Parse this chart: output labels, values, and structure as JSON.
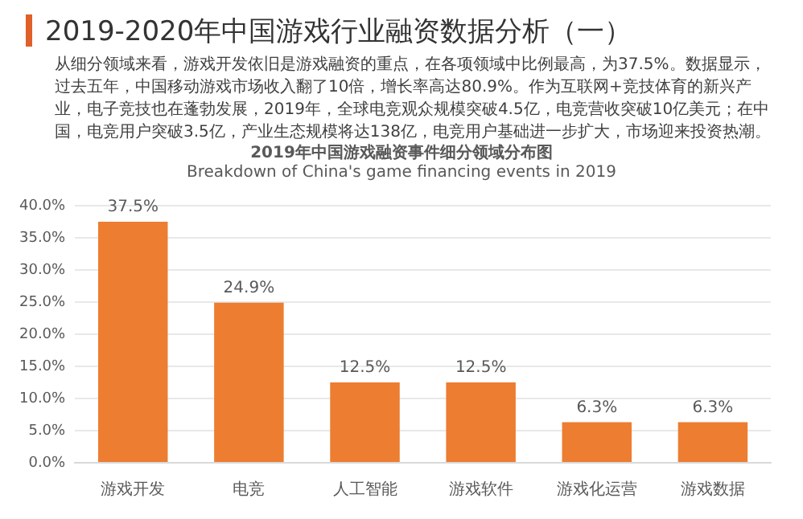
{
  "chart_data": {
    "type": "bar",
    "title": "2019-2020年中国游戏行业融资数据分析（一）",
    "subtitle": "从细分领域来看，游戏开发依旧是游戏融资的重点，在各项领域中比例最高，为37.5%。数据显示，过去五年，中国移动游戏市场收入翻了10倍，增长率高达80.9%。作为互联网+竞技体育的新兴产业，电子竞技也在蓬勃发展，2019年，全球电竞观众规模突破4.5亿，电竞营收突破10亿美元；在中国，电竞用户突破3.5亿，产业生态规模将达138亿，电竞用户基础进一步扩大，市场迎来投资热潮。",
    "annotations": [
      "2019年中国游戏融资事件细分领域分布图",
      "Breakdown of China's game financing events in 2019"
    ],
    "categories": [
      "游戏开发",
      "电竞",
      "人工智能",
      "游戏软件",
      "游戏化运营",
      "游戏数据"
    ],
    "values": [
      37.5,
      24.9,
      12.5,
      12.5,
      6.3,
      6.3
    ],
    "value_labels": [
      "37.5%",
      "24.9%",
      "12.5%",
      "12.5%",
      "6.3%",
      "6.3%"
    ],
    "color": "#ed7d31",
    "ylim": [
      0,
      40
    ],
    "yticks": [
      {
        "value": 0,
        "label": "0.0%"
      },
      {
        "value": 5,
        "label": "5.0%"
      },
      {
        "value": 10,
        "label": "10.0%"
      },
      {
        "value": 15,
        "label": "15.0%"
      },
      {
        "value": 20,
        "label": "20.0%"
      },
      {
        "value": 25,
        "label": "25.0%"
      },
      {
        "value": 30,
        "label": "30.0%"
      },
      {
        "value": 35,
        "label": "35.0%"
      },
      {
        "value": 40,
        "label": "40.0%"
      }
    ],
    "grid": "y",
    "legend": false
  }
}
